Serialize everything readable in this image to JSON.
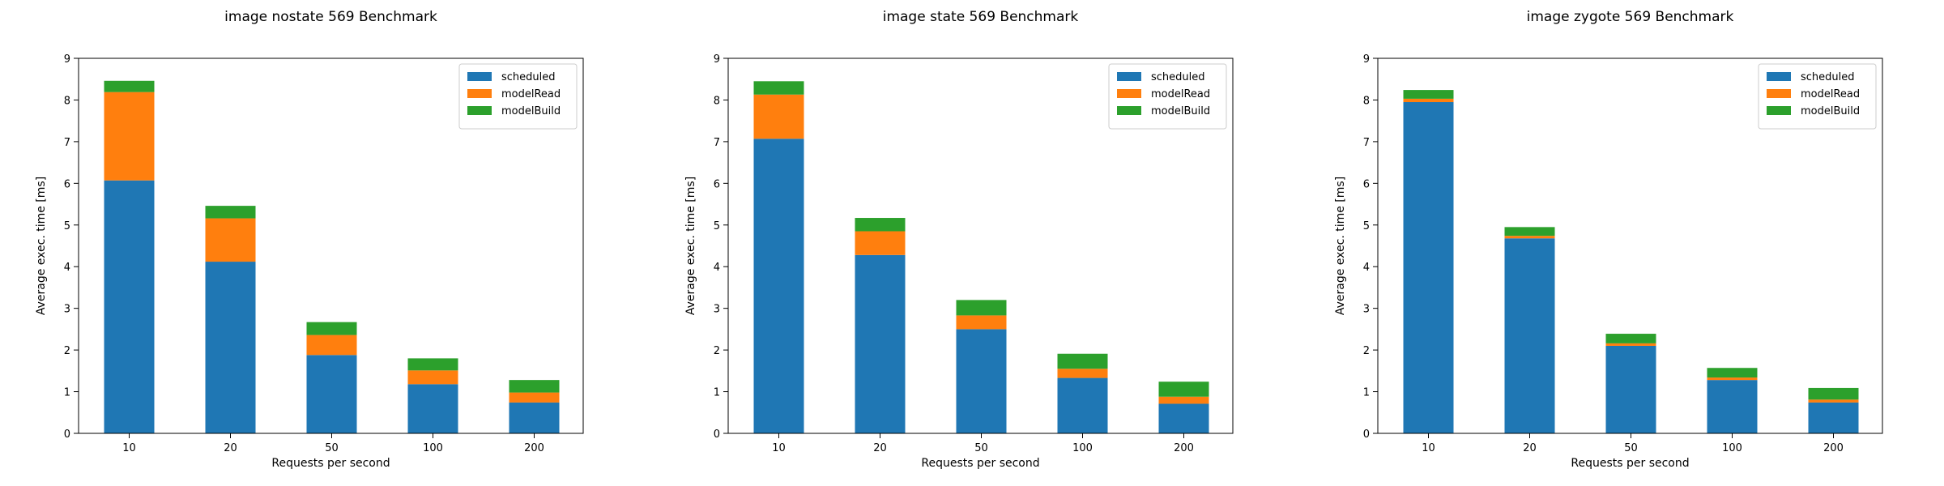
{
  "colors": {
    "scheduled": "#1f77b4",
    "modelRead": "#ff7f0e",
    "modelBuild": "#2ca02c",
    "axis": "#000000",
    "legend_border": "#cccccc"
  },
  "chart_data": [
    {
      "type": "bar",
      "stacked": true,
      "title": "image nostate 569 Benchmark",
      "xlabel": "Requests per second",
      "ylabel": "Average exec. time [ms]",
      "ylim": [
        0,
        9
      ],
      "yticks": [
        0,
        1,
        2,
        3,
        4,
        5,
        6,
        7,
        8,
        9
      ],
      "grid": false,
      "legend_position": "top-right",
      "categories": [
        "10",
        "20",
        "50",
        "100",
        "200"
      ],
      "series": [
        {
          "name": "scheduled",
          "values": [
            6.07,
            4.12,
            1.88,
            1.18,
            0.74
          ]
        },
        {
          "name": "modelRead",
          "values": [
            2.12,
            1.04,
            0.48,
            0.33,
            0.24
          ]
        },
        {
          "name": "modelBuild",
          "values": [
            0.27,
            0.3,
            0.31,
            0.29,
            0.3
          ]
        }
      ]
    },
    {
      "type": "bar",
      "stacked": true,
      "title": "image state 569 Benchmark",
      "xlabel": "Requests per second",
      "ylabel": "Average exec. time [ms]",
      "ylim": [
        0,
        9
      ],
      "yticks": [
        0,
        1,
        2,
        3,
        4,
        5,
        6,
        7,
        8,
        9
      ],
      "grid": false,
      "legend_position": "top-right",
      "categories": [
        "10",
        "20",
        "50",
        "100",
        "200"
      ],
      "series": [
        {
          "name": "scheduled",
          "values": [
            7.07,
            4.28,
            2.5,
            1.33,
            0.71
          ]
        },
        {
          "name": "modelRead",
          "values": [
            1.06,
            0.57,
            0.33,
            0.22,
            0.17
          ]
        },
        {
          "name": "modelBuild",
          "values": [
            0.32,
            0.32,
            0.37,
            0.36,
            0.36
          ]
        }
      ]
    },
    {
      "type": "bar",
      "stacked": true,
      "title": "image zygote 569 Benchmark",
      "xlabel": "Requests per second",
      "ylabel": "Average exec. time [ms]",
      "ylim": [
        0,
        9
      ],
      "yticks": [
        0,
        1,
        2,
        3,
        4,
        5,
        6,
        7,
        8,
        9
      ],
      "grid": false,
      "legend_position": "top-right",
      "categories": [
        "10",
        "20",
        "50",
        "100",
        "200"
      ],
      "series": [
        {
          "name": "scheduled",
          "values": [
            7.95,
            4.68,
            2.1,
            1.28,
            0.74
          ]
        },
        {
          "name": "modelRead",
          "values": [
            0.08,
            0.06,
            0.06,
            0.06,
            0.07
          ]
        },
        {
          "name": "modelBuild",
          "values": [
            0.21,
            0.21,
            0.23,
            0.23,
            0.28
          ]
        }
      ]
    }
  ]
}
